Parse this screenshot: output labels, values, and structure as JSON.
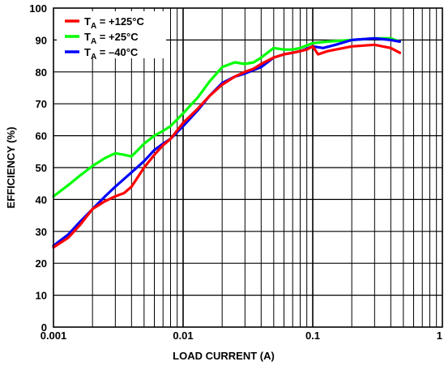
{
  "chart_data": {
    "type": "line",
    "title": "",
    "xlabel": "LOAD CURRENT (A)",
    "ylabel": "EFFICIENCY (%)",
    "x_scale": "log",
    "xlim": [
      0.001,
      1
    ],
    "ylim": [
      0,
      100
    ],
    "grid": true,
    "legend_position": "top-left",
    "x_ticks": [
      {
        "value": 0.001,
        "label": "0.001"
      },
      {
        "value": 0.01,
        "label": "0.01"
      },
      {
        "value": 0.1,
        "label": "0.1"
      },
      {
        "value": 1,
        "label": "1"
      }
    ],
    "y_ticks": [
      0,
      10,
      20,
      30,
      40,
      50,
      60,
      70,
      80,
      90,
      100
    ],
    "series": [
      {
        "name": "+125°C",
        "color": "#ff0000",
        "points": [
          [
            0.001,
            25
          ],
          [
            0.0013,
            28
          ],
          [
            0.0016,
            32
          ],
          [
            0.002,
            37
          ],
          [
            0.0025,
            39.5
          ],
          [
            0.003,
            41
          ],
          [
            0.0035,
            42
          ],
          [
            0.004,
            44
          ],
          [
            0.005,
            50
          ],
          [
            0.006,
            54
          ],
          [
            0.007,
            57
          ],
          [
            0.008,
            59
          ],
          [
            0.01,
            64
          ],
          [
            0.013,
            68.5
          ],
          [
            0.016,
            72.5
          ],
          [
            0.02,
            76
          ],
          [
            0.025,
            78.5
          ],
          [
            0.03,
            80
          ],
          [
            0.035,
            81
          ],
          [
            0.04,
            82.5
          ],
          [
            0.05,
            84.5
          ],
          [
            0.06,
            85.5
          ],
          [
            0.07,
            86
          ],
          [
            0.08,
            86.5
          ],
          [
            0.09,
            87
          ],
          [
            0.1,
            88
          ],
          [
            0.11,
            85.5
          ],
          [
            0.13,
            86.5
          ],
          [
            0.2,
            88
          ],
          [
            0.3,
            88.5
          ],
          [
            0.4,
            87.5
          ],
          [
            0.47,
            86
          ]
        ]
      },
      {
        "name": "+25°C",
        "color": "#00ff00",
        "points": [
          [
            0.001,
            41
          ],
          [
            0.0013,
            44.5
          ],
          [
            0.0016,
            47.5
          ],
          [
            0.002,
            50.5
          ],
          [
            0.0025,
            53
          ],
          [
            0.003,
            54.5
          ],
          [
            0.0035,
            54
          ],
          [
            0.004,
            53.5
          ],
          [
            0.005,
            57.5
          ],
          [
            0.006,
            60
          ],
          [
            0.007,
            61.5
          ],
          [
            0.008,
            63
          ],
          [
            0.01,
            67
          ],
          [
            0.013,
            72
          ],
          [
            0.016,
            77
          ],
          [
            0.02,
            81.5
          ],
          [
            0.025,
            83
          ],
          [
            0.03,
            82.5
          ],
          [
            0.035,
            83
          ],
          [
            0.04,
            84.5
          ],
          [
            0.05,
            87.5
          ],
          [
            0.06,
            87
          ],
          [
            0.07,
            87
          ],
          [
            0.08,
            87.5
          ],
          [
            0.1,
            89
          ],
          [
            0.13,
            89.5
          ],
          [
            0.2,
            90
          ],
          [
            0.3,
            90.5
          ],
          [
            0.4,
            90.5
          ],
          [
            0.47,
            89.5
          ]
        ]
      },
      {
        "name": "–40°C",
        "color": "#0000ff",
        "points": [
          [
            0.001,
            25.5
          ],
          [
            0.0013,
            29
          ],
          [
            0.0016,
            33
          ],
          [
            0.002,
            37
          ],
          [
            0.0025,
            41
          ],
          [
            0.003,
            44
          ],
          [
            0.004,
            48.5
          ],
          [
            0.005,
            52
          ],
          [
            0.006,
            55.5
          ],
          [
            0.007,
            57.5
          ],
          [
            0.008,
            59
          ],
          [
            0.01,
            63
          ],
          [
            0.013,
            68
          ],
          [
            0.016,
            72.5
          ],
          [
            0.02,
            76.5
          ],
          [
            0.025,
            78.5
          ],
          [
            0.03,
            79.5
          ],
          [
            0.04,
            81.5
          ],
          [
            0.05,
            84.5
          ],
          [
            0.06,
            85.5
          ],
          [
            0.07,
            86
          ],
          [
            0.08,
            86.5
          ],
          [
            0.1,
            88
          ],
          [
            0.12,
            87.5
          ],
          [
            0.15,
            88.5
          ],
          [
            0.2,
            90
          ],
          [
            0.3,
            90.5
          ],
          [
            0.4,
            90
          ],
          [
            0.47,
            89.5
          ]
        ]
      }
    ]
  }
}
